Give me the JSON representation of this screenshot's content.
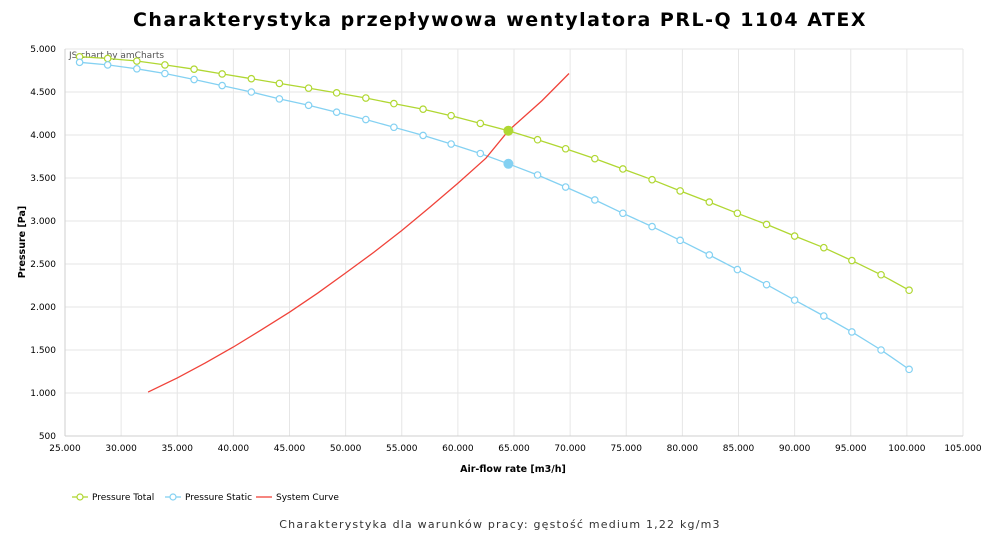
{
  "title": "Charakterystyka przepływowa wentylatora PRL-Q 1104 ATEX",
  "footer": "Charakterystyka dla warunków pracy: gęstość medium 1,22 kg/m3",
  "credit": "JS chart by amCharts",
  "chart_data": {
    "type": "line",
    "xlabel": "Air-flow rate [m3/h]",
    "ylabel": "Pressure [Pa]",
    "xlim": [
      25000,
      105000
    ],
    "ylim": [
      500,
      5000
    ],
    "x_ticks": [
      25000,
      30000,
      35000,
      40000,
      45000,
      50000,
      55000,
      60000,
      65000,
      70000,
      75000,
      80000,
      85000,
      90000,
      95000,
      100000,
      105000
    ],
    "x_tick_labels": [
      "25.000",
      "30.000",
      "35.000",
      "40.000",
      "45.000",
      "50.000",
      "55.000",
      "60.000",
      "65.000",
      "70.000",
      "75.000",
      "80.000",
      "85.000",
      "90.000",
      "95.000",
      "100.000",
      "105.000"
    ],
    "y_ticks": [
      500,
      1000,
      1500,
      2000,
      2500,
      3000,
      3500,
      4000,
      4500,
      5000
    ],
    "y_tick_labels": [
      "500",
      "1.000",
      "1.500",
      "2.000",
      "2.500",
      "3.000",
      "3.500",
      "4.000",
      "4.500",
      "5.000"
    ],
    "grid": true,
    "legend_position": "bottom-left",
    "series": [
      {
        "name": "Pressure Total",
        "color": "#b0d732",
        "marker": "circle",
        "x": [
          26300,
          28800,
          31400,
          33900,
          36500,
          39000,
          41600,
          44100,
          46700,
          49200,
          51800,
          54300,
          56900,
          59400,
          62000,
          64500,
          67100,
          69600,
          72200,
          74700,
          77300,
          79800,
          82400,
          84900,
          87500,
          90000,
          92600,
          95100,
          97700,
          100200
        ],
        "y": [
          4910,
          4890,
          4860,
          4815,
          4765,
          4710,
          4655,
          4600,
          4545,
          4490,
          4430,
          4365,
          4300,
          4225,
          4135,
          4050,
          3945,
          3840,
          3725,
          3605,
          3480,
          3350,
          3220,
          3090,
          2960,
          2825,
          2690,
          2540,
          2375,
          2195
        ]
      },
      {
        "name": "Pressure Static",
        "color": "#84d1f2",
        "marker": "circle",
        "x": [
          26300,
          28800,
          31400,
          33900,
          36500,
          39000,
          41600,
          44100,
          46700,
          49200,
          51800,
          54300,
          56900,
          59400,
          62000,
          64500,
          67100,
          69600,
          72200,
          74700,
          77300,
          79800,
          82400,
          84900,
          87500,
          90000,
          92600,
          95100,
          97700,
          100200
        ],
        "y": [
          4845,
          4815,
          4770,
          4715,
          4645,
          4575,
          4500,
          4420,
          4345,
          4265,
          4180,
          4090,
          3995,
          3895,
          3785,
          3665,
          3535,
          3395,
          3245,
          3090,
          2935,
          2775,
          2605,
          2435,
          2260,
          2080,
          1895,
          1710,
          1500,
          1275
        ]
      },
      {
        "name": "System Curve",
        "color": "#f0433a",
        "marker": "none",
        "x": [
          32400,
          35000,
          37500,
          40000,
          42500,
          45000,
          47500,
          50000,
          52500,
          55000,
          57500,
          60000,
          62500,
          64500,
          67500,
          69900
        ],
        "y": [
          1010,
          1175,
          1350,
          1535,
          1735,
          1940,
          2160,
          2395,
          2635,
          2890,
          3160,
          3440,
          3730,
          4050,
          4400,
          4715
        ]
      }
    ],
    "operating_points": [
      {
        "series": "Pressure Total",
        "x": 64500,
        "y": 4050
      },
      {
        "series": "Pressure Static",
        "x": 64500,
        "y": 3665
      }
    ]
  }
}
